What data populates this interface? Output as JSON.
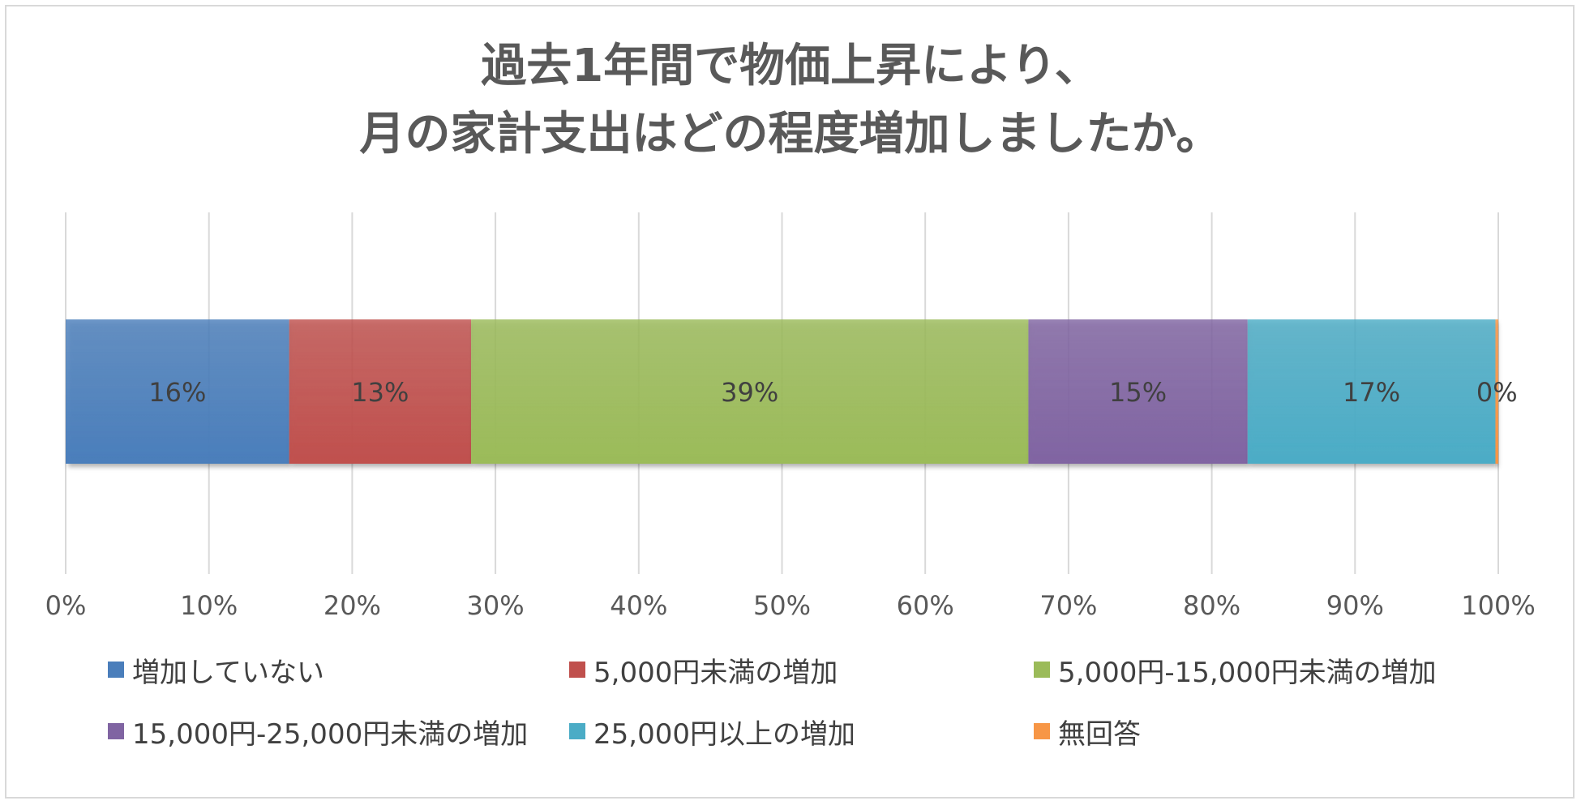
{
  "chart_data": {
    "type": "bar",
    "orientation": "horizontal",
    "stacked": "percent",
    "title": [
      "過去1年間で物価上昇により、",
      "月の家計支出はどの程度増加しましたか。"
    ],
    "categories": [
      ""
    ],
    "series": [
      {
        "name": "増加していない",
        "values": [
          15.6
        ],
        "label": "16%",
        "color": "#4a7ebb"
      },
      {
        "name": "5,000円未満の増加",
        "values": [
          12.7
        ],
        "label": "13%",
        "color": "#c0504d"
      },
      {
        "name": "5,000円-15,000円未満の増加",
        "values": [
          38.9
        ],
        "label": "39%",
        "color": "#9bbb59"
      },
      {
        "name": "15,000円-25,000円未満の増加",
        "values": [
          15.3
        ],
        "label": "15%",
        "color": "#8064a2"
      },
      {
        "name": "25,000円以上の増加",
        "values": [
          17.3
        ],
        "label": "17%",
        "color": "#4bacc6"
      },
      {
        "name": "無回答",
        "values": [
          0.2
        ],
        "label": "0%",
        "color": "#f79646"
      }
    ],
    "x_ticks": [
      "0%",
      "10%",
      "20%",
      "30%",
      "40%",
      "50%",
      "60%",
      "70%",
      "80%",
      "90%",
      "100%"
    ],
    "xlim": [
      0,
      100
    ],
    "grid": "vertical",
    "legend_position": "bottom"
  }
}
